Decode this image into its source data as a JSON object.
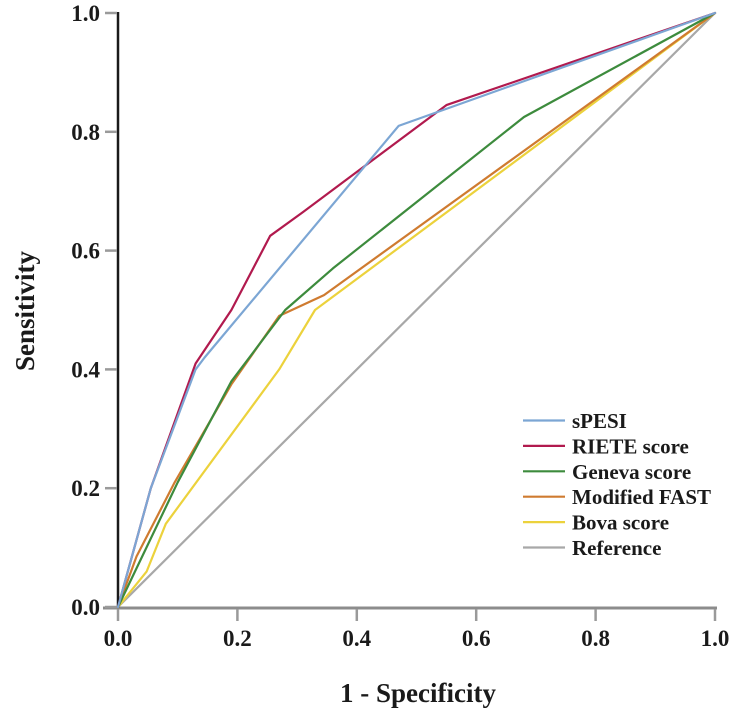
{
  "figure": {
    "background": "#ffffff",
    "text_color": "#1a1a1a"
  },
  "axes": {
    "x_axis_color": "#8c8c8c",
    "y_axis_color": "#1a1a1a",
    "tick_color": "#9a9a9a"
  },
  "chart_data": {
    "type": "line",
    "subtype": "roc-curves",
    "title": "",
    "xlabel": "1 - Specificity",
    "ylabel": "Sensitivity",
    "xlim": [
      0,
      1
    ],
    "ylim": [
      0,
      1
    ],
    "grid": false,
    "legend_position": "right-center-inside",
    "x_ticks": [
      "0.0",
      "0.2",
      "0.4",
      "0.6",
      "0.8",
      "1.0"
    ],
    "y_ticks": [
      "0.0",
      "0.2",
      "0.4",
      "0.6",
      "0.8",
      "1.0"
    ],
    "series": [
      {
        "name": "sPESI",
        "color": "#7ca6d4",
        "points": [
          [
            0,
            0
          ],
          [
            0.055,
            0.2
          ],
          [
            0.13,
            0.4
          ],
          [
            0.145,
            0.42
          ],
          [
            0.47,
            0.81
          ],
          [
            1,
            1
          ]
        ]
      },
      {
        "name": "RIETE score",
        "color": "#b11a4e",
        "points": [
          [
            0,
            0
          ],
          [
            0.055,
            0.2
          ],
          [
            0.13,
            0.41
          ],
          [
            0.19,
            0.5
          ],
          [
            0.255,
            0.625
          ],
          [
            0.31,
            0.665
          ],
          [
            0.55,
            0.845
          ],
          [
            1,
            1
          ]
        ]
      },
      {
        "name": "Geneva score",
        "color": "#3d8b3d",
        "points": [
          [
            0,
            0
          ],
          [
            0.1,
            0.21
          ],
          [
            0.19,
            0.38
          ],
          [
            0.28,
            0.5
          ],
          [
            0.36,
            0.57
          ],
          [
            0.68,
            0.825
          ],
          [
            1,
            1
          ]
        ]
      },
      {
        "name": "Modified FAST",
        "color": "#cf7b30",
        "points": [
          [
            0,
            0
          ],
          [
            0.031,
            0.085
          ],
          [
            0.095,
            0.21
          ],
          [
            0.19,
            0.375
          ],
          [
            0.27,
            0.49
          ],
          [
            0.345,
            0.525
          ],
          [
            1,
            1
          ]
        ]
      },
      {
        "name": "Bova score",
        "color": "#ecd23c",
        "points": [
          [
            0,
            0
          ],
          [
            0.048,
            0.06
          ],
          [
            0.08,
            0.14
          ],
          [
            0.27,
            0.4
          ],
          [
            0.33,
            0.5
          ],
          [
            1,
            1
          ]
        ]
      },
      {
        "name": "Reference",
        "color": "#a8a8a8",
        "points": [
          [
            0,
            0
          ],
          [
            1,
            1
          ]
        ]
      }
    ]
  }
}
